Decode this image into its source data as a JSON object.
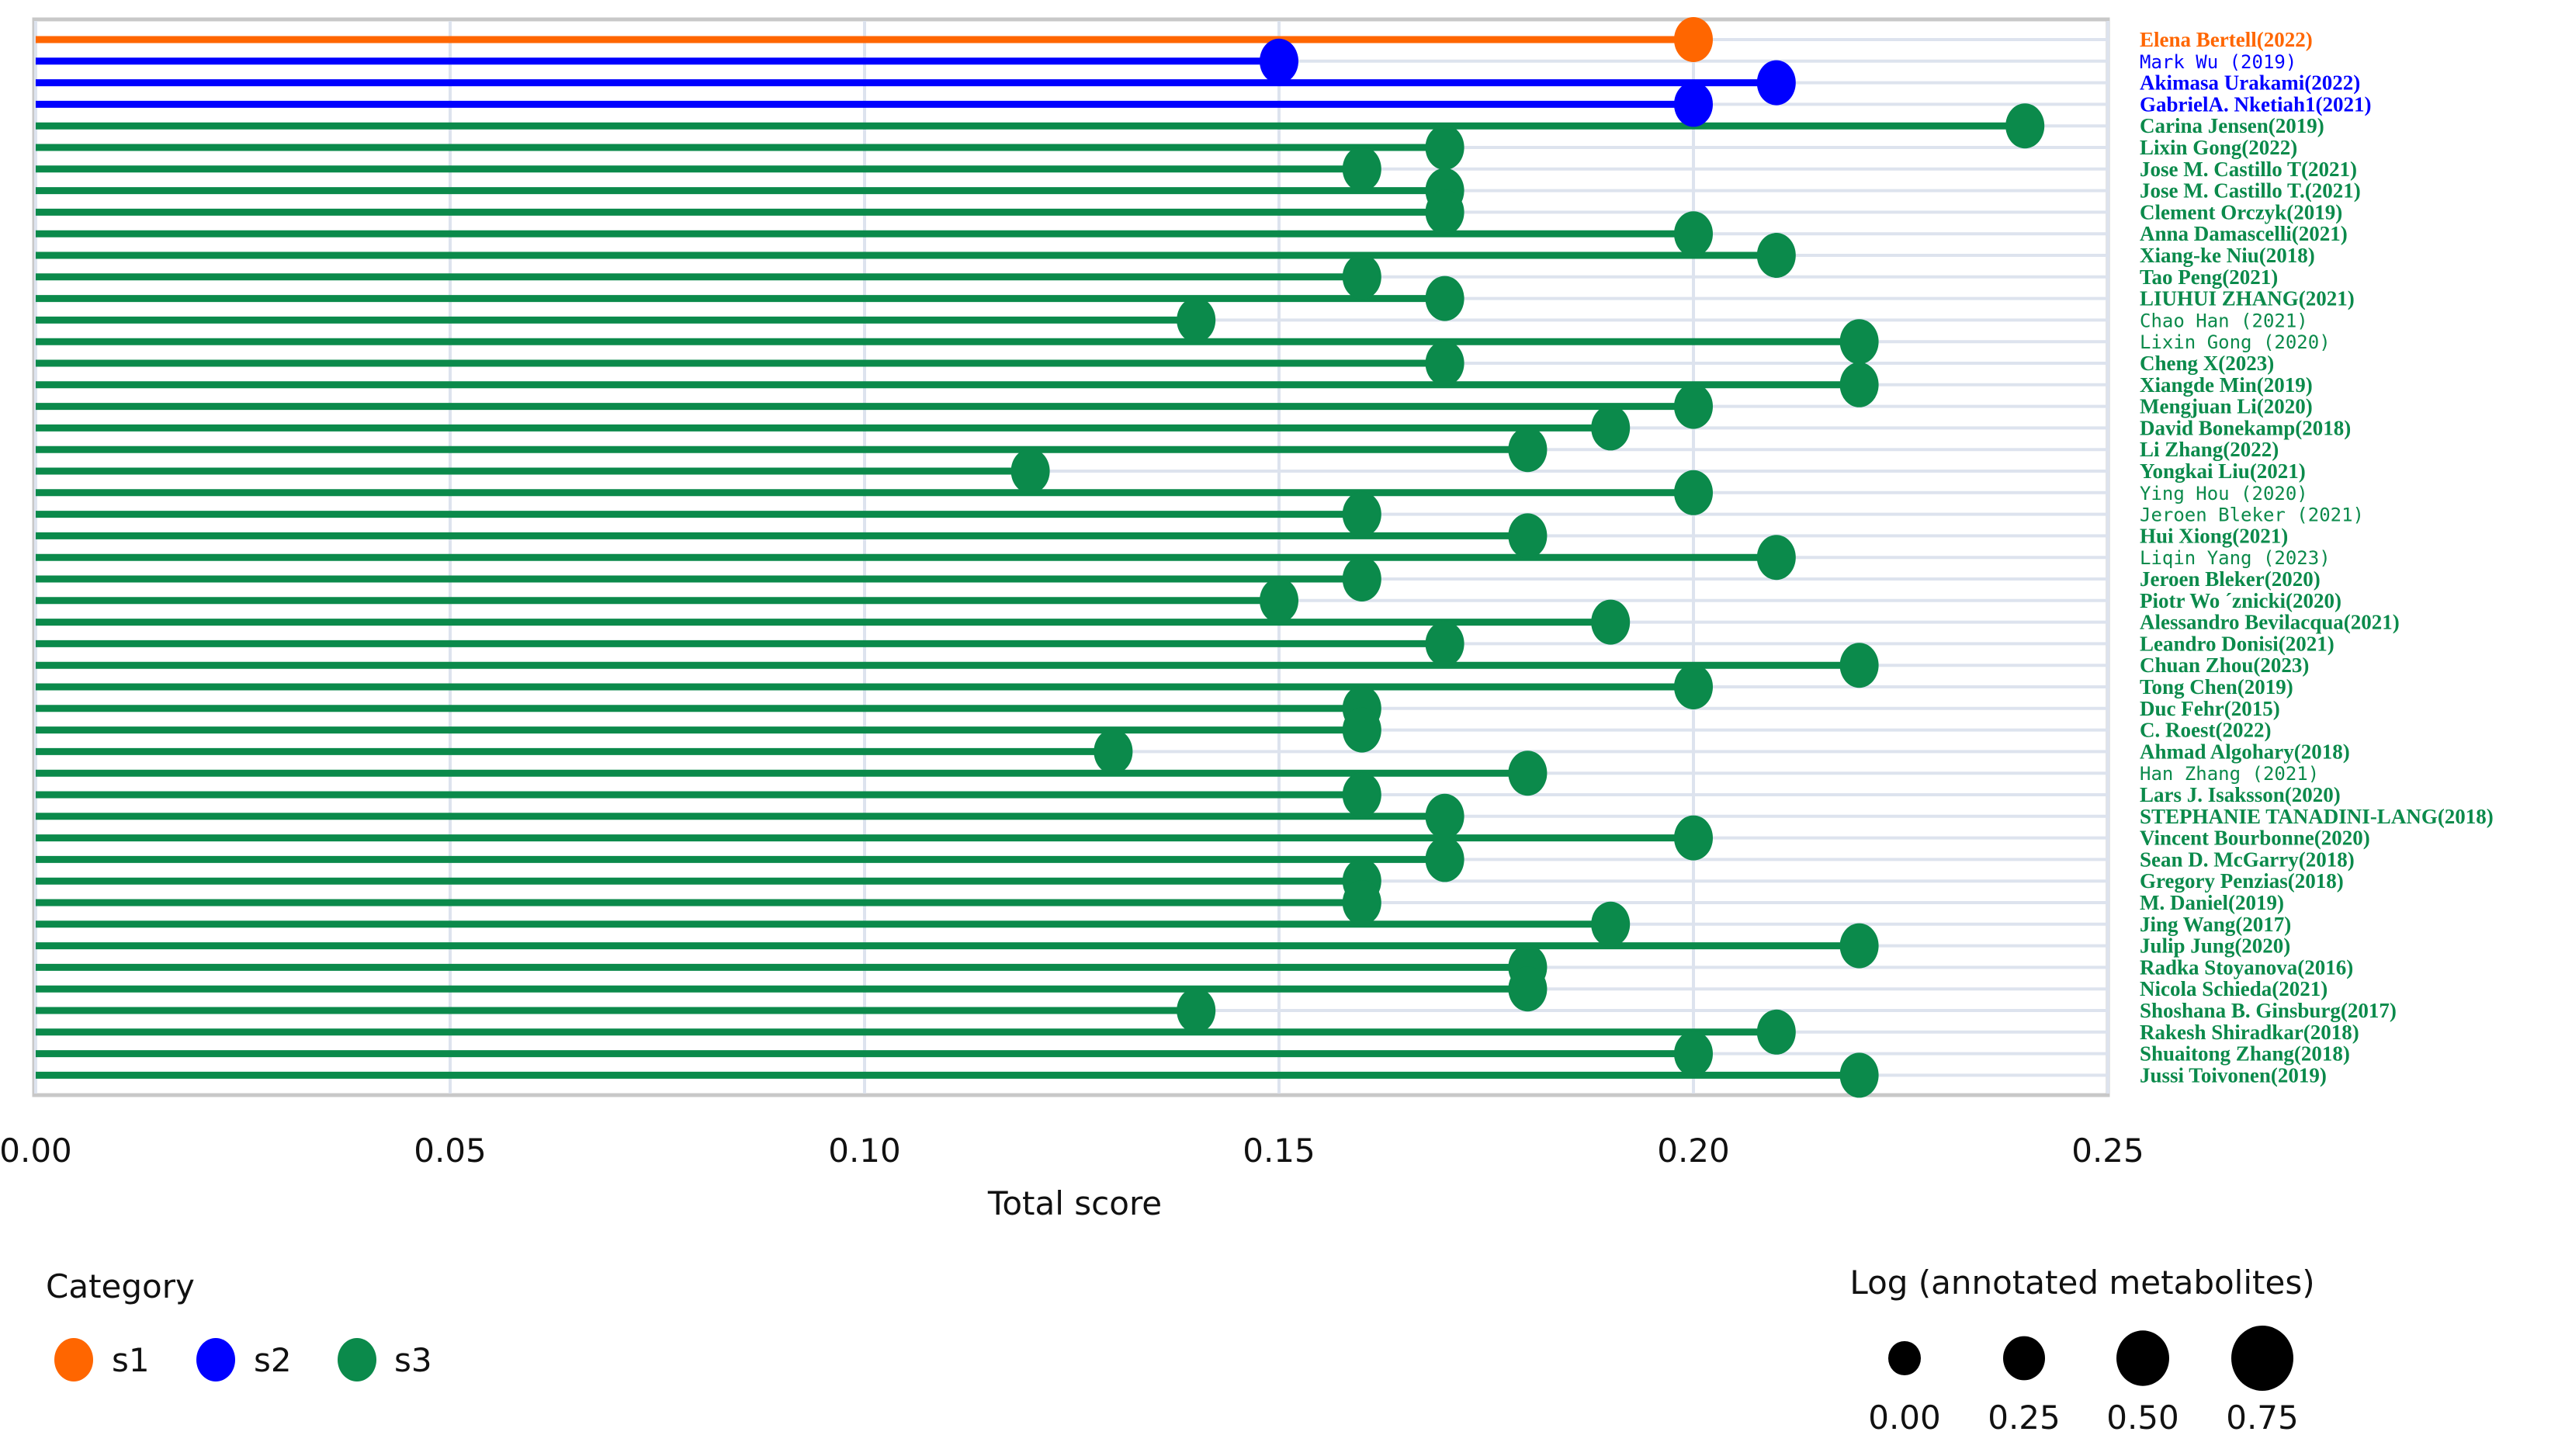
{
  "chart_data": {
    "type": "lollipop",
    "xlabel": "Total score",
    "xlim": [
      0,
      0.25
    ],
    "xticks": [
      "0.00",
      "0.05",
      "0.10",
      "0.15",
      "0.20",
      "0.25"
    ],
    "grid": true,
    "colors": {
      "s1": "#ff6600",
      "s2": "#0000ff",
      "s3": "#0b8a4b"
    },
    "items": [
      {
        "label": "Elena Bertell(2022)",
        "category": "s1",
        "value": 0.2
      },
      {
        "label": "Mark Wu (2019)",
        "category": "s2",
        "value": 0.15
      },
      {
        "label": "Akimasa Urakami(2022)",
        "category": "s2",
        "value": 0.21
      },
      {
        "label": "GabrielA. Nketiah1(2021)",
        "category": "s2",
        "value": 0.2
      },
      {
        "label": "Carina Jensen(2019)",
        "category": "s3",
        "value": 0.24
      },
      {
        "label": "Lixin Gong(2022)",
        "category": "s3",
        "value": 0.17
      },
      {
        "label": "Jose M. Castillo T(2021)",
        "category": "s3",
        "value": 0.16
      },
      {
        "label": "Jose M. Castillo T.(2021)",
        "category": "s3",
        "value": 0.17
      },
      {
        "label": "Clement Orczyk(2019)",
        "category": "s3",
        "value": 0.17
      },
      {
        "label": "Anna Damascelli(2021)",
        "category": "s3",
        "value": 0.2
      },
      {
        "label": "Xiang-ke Niu(2018)",
        "category": "s3",
        "value": 0.21
      },
      {
        "label": "Tao Peng(2021)",
        "category": "s3",
        "value": 0.16
      },
      {
        "label": "LIUHUI ZHANG(2021)",
        "category": "s3",
        "value": 0.17
      },
      {
        "label": "Chao Han (2021)",
        "category": "s3",
        "value": 0.14
      },
      {
        "label": "Lixin Gong (2020)",
        "category": "s3",
        "value": 0.22
      },
      {
        "label": "Cheng X(2023)",
        "category": "s3",
        "value": 0.17
      },
      {
        "label": "Xiangde Min(2019)",
        "category": "s3",
        "value": 0.22
      },
      {
        "label": "Mengjuan Li(2020)",
        "category": "s3",
        "value": 0.2
      },
      {
        "label": "David Bonekamp(2018)",
        "category": "s3",
        "value": 0.19
      },
      {
        "label": "Li Zhang(2022)",
        "category": "s3",
        "value": 0.18
      },
      {
        "label": "Yongkai Liu(2021)",
        "category": "s3",
        "value": 0.12
      },
      {
        "label": "Ying Hou (2020)",
        "category": "s3",
        "value": 0.2
      },
      {
        "label": "Jeroen Bleker (2021)",
        "category": "s3",
        "value": 0.16
      },
      {
        "label": "Hui Xiong(2021)",
        "category": "s3",
        "value": 0.18
      },
      {
        "label": "Liqin Yang (2023)",
        "category": "s3",
        "value": 0.21
      },
      {
        "label": "Jeroen Bleker(2020)",
        "category": "s3",
        "value": 0.16
      },
      {
        "label": "Piotr Wo ´znicki(2020)",
        "category": "s3",
        "value": 0.15
      },
      {
        "label": "Alessandro Bevilacqua(2021)",
        "category": "s3",
        "value": 0.19
      },
      {
        "label": "Leandro Donisi(2021)",
        "category": "s3",
        "value": 0.17
      },
      {
        "label": "Chuan Zhou(2023)",
        "category": "s3",
        "value": 0.22
      },
      {
        "label": "Tong Chen(2019)",
        "category": "s3",
        "value": 0.2
      },
      {
        "label": "Duc Fehr(2015)",
        "category": "s3",
        "value": 0.16
      },
      {
        "label": "C. Roest(2022)",
        "category": "s3",
        "value": 0.16
      },
      {
        "label": "Ahmad Algohary(2018)",
        "category": "s3",
        "value": 0.13
      },
      {
        "label": "Han Zhang (2021)",
        "category": "s3",
        "value": 0.18
      },
      {
        "label": "Lars J. Isaksson(2020)",
        "category": "s3",
        "value": 0.16
      },
      {
        "label": "STEPHANIE TANADINI-LANG(2018)",
        "category": "s3",
        "value": 0.17
      },
      {
        "label": "Vincent Bourbonne(2020)",
        "category": "s3",
        "value": 0.2
      },
      {
        "label": "Sean D. McGarry(2018)",
        "category": "s3",
        "value": 0.17
      },
      {
        "label": "Gregory Penzias(2018)",
        "category": "s3",
        "value": 0.16
      },
      {
        "label": "M. Daniel(2019)",
        "category": "s3",
        "value": 0.16
      },
      {
        "label": "Jing Wang(2017)",
        "category": "s3",
        "value": 0.19
      },
      {
        "label": "Julip Jung(2020)",
        "category": "s3",
        "value": 0.22
      },
      {
        "label": "Radka Stoyanova(2016)",
        "category": "s3",
        "value": 0.18
      },
      {
        "label": "Nicola Schieda(2021)",
        "category": "s3",
        "value": 0.18
      },
      {
        "label": "Shoshana B. Ginsburg(2017)",
        "category": "s3",
        "value": 0.14
      },
      {
        "label": "Rakesh Shiradkar(2018)",
        "category": "s3",
        "value": 0.21
      },
      {
        "label": "Shuaitong Zhang(2018)",
        "category": "s3",
        "value": 0.2
      },
      {
        "label": "Jussi Toivonen(2019)",
        "category": "s3",
        "value": 0.22
      }
    ],
    "legend_category": {
      "title": "Category",
      "entries": [
        "s1",
        "s2",
        "s3"
      ],
      "placement": "bottom-left"
    },
    "legend_size": {
      "title": "Log (annotated metabolites)",
      "entries": [
        "0.00",
        "0.25",
        "0.50",
        "0.75"
      ],
      "placement": "bottom-right"
    }
  }
}
